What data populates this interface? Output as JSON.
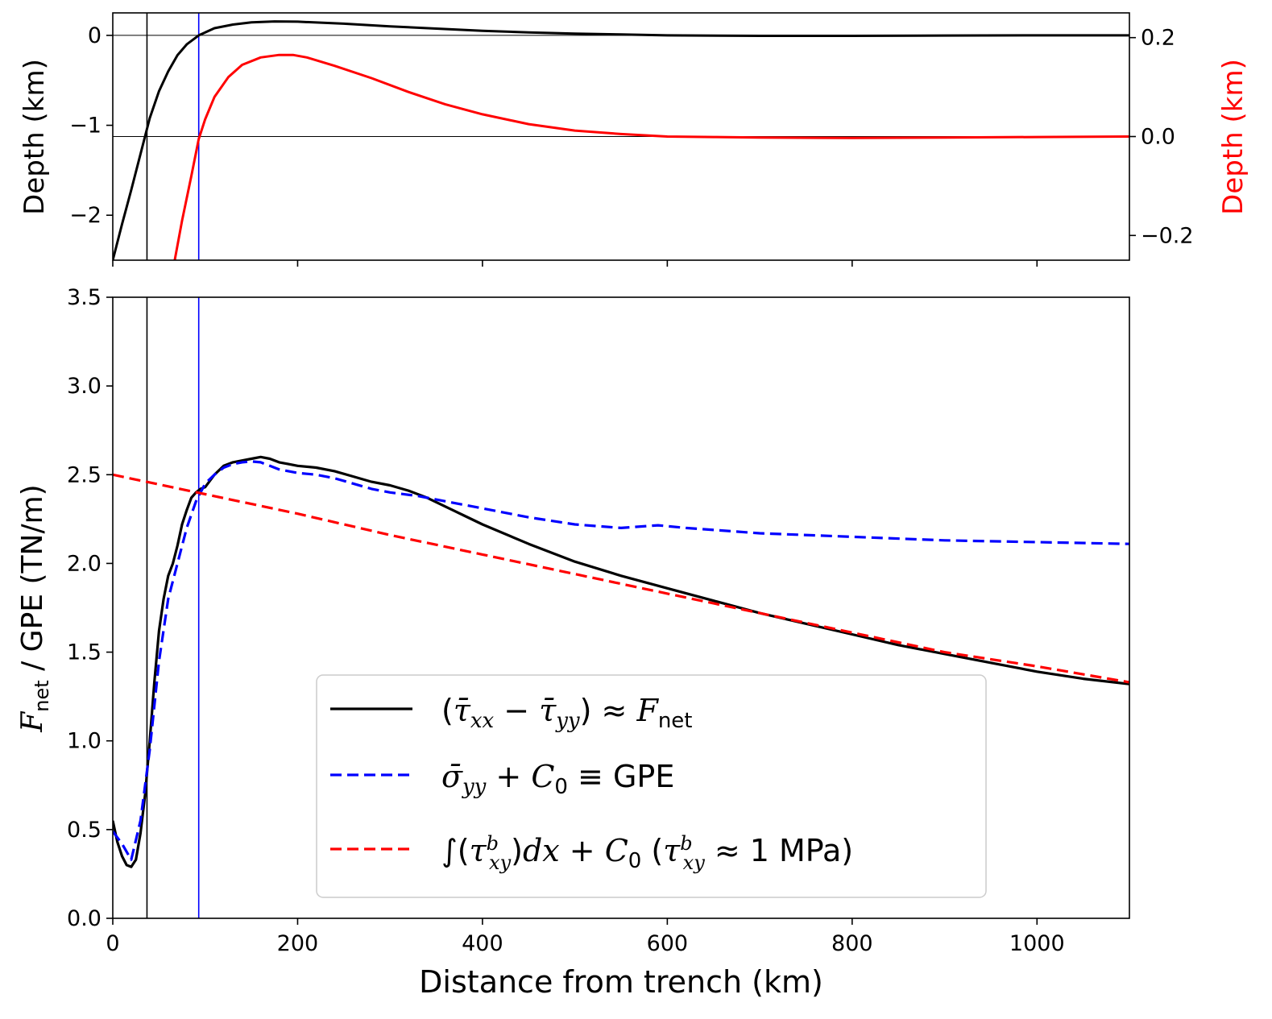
{
  "chart_data": [
    {
      "type": "line",
      "panel": "top",
      "xlim": [
        0,
        1100
      ],
      "x_ticks": [
        0,
        200,
        400,
        600,
        800,
        1000
      ],
      "ylim": [
        -2.5,
        0.25
      ],
      "y_ticks": [
        0,
        -1,
        -2
      ],
      "y_tick_labels": [
        "0",
        "−1",
        "−2"
      ],
      "ylabel": "Depth (km)",
      "right_axis": {
        "ylim": [
          -0.25,
          0.25
        ],
        "ticks": [
          0.2,
          0.0,
          -0.2
        ],
        "tick_labels": [
          "0.2",
          "0.0",
          "−0.2"
        ],
        "label": "Depth (km)",
        "color": "#ff0000"
      },
      "hlines_left": [
        0
      ],
      "hlines_right": [
        0
      ],
      "vlines": [
        {
          "x": 37,
          "color": "#000000"
        },
        {
          "x": 93,
          "color": "#0000ff"
        }
      ],
      "series": [
        {
          "axis": "left",
          "color": "#000000",
          "style": "solid",
          "x": [
            0,
            10,
            20,
            30,
            40,
            50,
            60,
            70,
            80,
            93,
            110,
            130,
            150,
            175,
            200,
            250,
            300,
            350,
            400,
            450,
            500,
            550,
            600,
            700,
            800,
            900,
            1000,
            1100
          ],
          "y": [
            -2.5,
            -2.1,
            -1.72,
            -1.32,
            -0.92,
            -0.62,
            -0.4,
            -0.22,
            -0.1,
            0.0,
            0.08,
            0.12,
            0.145,
            0.155,
            0.152,
            0.13,
            0.1,
            0.075,
            0.05,
            0.033,
            0.02,
            0.01,
            0.0,
            -0.005,
            -0.005,
            -0.002,
            0.0,
            0.0
          ]
        },
        {
          "axis": "right",
          "color": "#ff0000",
          "style": "solid",
          "x": [
            67,
            75,
            85,
            93,
            100,
            110,
            125,
            140,
            160,
            180,
            195,
            210,
            240,
            280,
            320,
            360,
            400,
            450,
            500,
            550,
            600,
            650,
            700,
            800,
            900,
            1000,
            1100
          ],
          "y": [
            -0.25,
            -0.17,
            -0.08,
            -0.005,
            0.035,
            0.08,
            0.12,
            0.145,
            0.16,
            0.165,
            0.165,
            0.16,
            0.143,
            0.118,
            0.09,
            0.065,
            0.045,
            0.025,
            0.012,
            0.005,
            0.0,
            -0.001,
            -0.002,
            -0.003,
            -0.002,
            -0.001,
            0.0
          ]
        }
      ]
    },
    {
      "type": "line",
      "panel": "bottom",
      "xlim": [
        0,
        1100
      ],
      "x_ticks": [
        0,
        200,
        400,
        600,
        800,
        1000
      ],
      "ylim": [
        0,
        3.5
      ],
      "y_ticks": [
        0.0,
        0.5,
        1.0,
        1.5,
        2.0,
        2.5,
        3.0,
        3.5
      ],
      "y_tick_labels": [
        "0.0",
        "0.5",
        "1.0",
        "1.5",
        "2.0",
        "2.5",
        "3.0",
        "3.5"
      ],
      "xlabel": "Distance from trench (km)",
      "ylabel_main": "F",
      "ylabel_sub": "net",
      "ylabel_rest": " / GPE (TN/m)",
      "vlines": [
        {
          "x": 37,
          "color": "#000000"
        },
        {
          "x": 93,
          "color": "#0000ff"
        }
      ],
      "legend_placement": "lower-center",
      "series": [
        {
          "name": "(τ̄xx − τ̄yy) ≈ Fnet",
          "color": "#000000",
          "style": "solid",
          "x": [
            0,
            5,
            10,
            15,
            20,
            25,
            30,
            35,
            40,
            45,
            50,
            55,
            60,
            65,
            70,
            75,
            80,
            85,
            90,
            95,
            100,
            110,
            120,
            130,
            140,
            150,
            160,
            170,
            180,
            190,
            200,
            220,
            240,
            260,
            280,
            300,
            320,
            340,
            360,
            380,
            400,
            450,
            500,
            550,
            600,
            650,
            700,
            750,
            800,
            850,
            900,
            950,
            1000,
            1050,
            1100
          ],
          "y": [
            0.55,
            0.43,
            0.35,
            0.3,
            0.29,
            0.33,
            0.48,
            0.7,
            1.0,
            1.33,
            1.62,
            1.8,
            1.93,
            2.0,
            2.1,
            2.22,
            2.3,
            2.37,
            2.4,
            2.42,
            2.43,
            2.5,
            2.55,
            2.57,
            2.58,
            2.59,
            2.6,
            2.59,
            2.57,
            2.56,
            2.55,
            2.54,
            2.52,
            2.49,
            2.46,
            2.44,
            2.41,
            2.37,
            2.32,
            2.27,
            2.22,
            2.11,
            2.01,
            1.93,
            1.86,
            1.79,
            1.72,
            1.66,
            1.6,
            1.54,
            1.49,
            1.44,
            1.39,
            1.35,
            1.32
          ]
        },
        {
          "name": "σ̄yy + C0 ≡ GPE",
          "color": "#0000ff",
          "style": "dashed",
          "x": [
            0,
            10,
            20,
            30,
            40,
            50,
            60,
            70,
            80,
            90,
            100,
            110,
            120,
            130,
            140,
            150,
            160,
            170,
            180,
            200,
            220,
            240,
            260,
            280,
            300,
            330,
            360,
            400,
            450,
            500,
            550,
            590,
            620,
            700,
            800,
            900,
            1000,
            1100
          ],
          "y": [
            0.49,
            0.42,
            0.33,
            0.55,
            0.95,
            1.45,
            1.8,
            2.0,
            2.2,
            2.35,
            2.45,
            2.5,
            2.54,
            2.56,
            2.57,
            2.575,
            2.57,
            2.55,
            2.53,
            2.51,
            2.5,
            2.48,
            2.45,
            2.42,
            2.4,
            2.38,
            2.35,
            2.31,
            2.26,
            2.22,
            2.2,
            2.215,
            2.2,
            2.17,
            2.15,
            2.13,
            2.12,
            2.11
          ]
        },
        {
          "name": "∫(τbxy)dx + C0  (τbxy ≈ 1 MPa)",
          "color": "#ff0000",
          "style": "dashed",
          "x": [
            0,
            100,
            200,
            300,
            400,
            500,
            600,
            700,
            800,
            900,
            1000,
            1100
          ],
          "y": [
            2.5,
            2.39,
            2.28,
            2.16,
            2.05,
            1.94,
            1.83,
            1.72,
            1.61,
            1.5,
            1.42,
            1.33
          ]
        }
      ]
    }
  ]
}
